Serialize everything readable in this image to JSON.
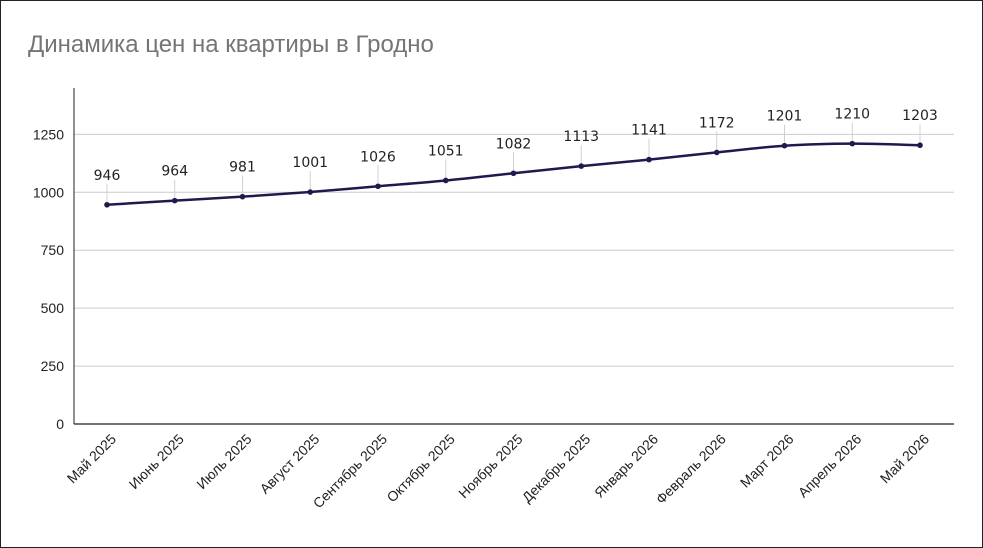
{
  "chart_data": {
    "type": "line",
    "title": "Динамика цен на квартиры в Гродно",
    "xlabel": "",
    "ylabel": "",
    "categories": [
      "Май 2025",
      "Июнь 2025",
      "Июль 2025",
      "Август 2025",
      "Сентябрь 2025",
      "Октябрь 2025",
      "Ноябрь 2025",
      "Декабрь 2025",
      "Январь 2026",
      "Февраль 2026",
      "Март 2026",
      "Апрель 2026",
      "Май 2026"
    ],
    "values": [
      946,
      964,
      981,
      1001,
      1026,
      1051,
      1082,
      1113,
      1141,
      1172,
      1201,
      1210,
      1203
    ],
    "yticks": [
      0,
      250,
      500,
      750,
      1000,
      1250
    ],
    "ylim": [
      0,
      1450
    ],
    "grid": true,
    "legend": "none",
    "data_labels": true,
    "colors": {
      "line": "#1f1a4d",
      "grid": "#cccccc",
      "axis": "#222222",
      "title": "#757575",
      "leader": "#d0d0d0"
    }
  }
}
